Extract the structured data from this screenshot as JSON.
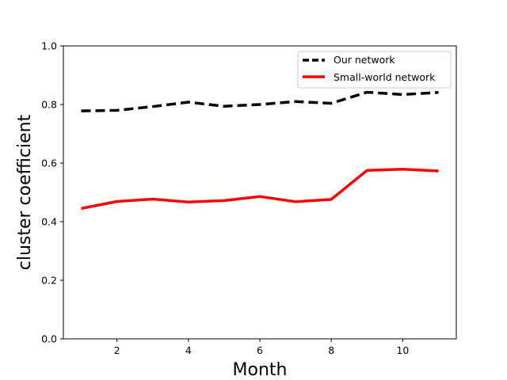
{
  "chart_data": {
    "type": "line",
    "xlabel": "Month",
    "ylabel": "cluster coefficient",
    "xlim": [
      0.5,
      11.5
    ],
    "ylim": [
      0.0,
      1.0
    ],
    "xticks": [
      2,
      4,
      6,
      8,
      10
    ],
    "yticks": [
      0.0,
      0.2,
      0.4,
      0.6,
      0.8,
      1.0
    ],
    "xtick_labels": [
      "2",
      "4",
      "6",
      "8",
      "10"
    ],
    "ytick_labels": [
      "0.0",
      "0.2",
      "0.4",
      "0.6",
      "0.8",
      "1.0"
    ],
    "x": [
      1,
      2,
      3,
      4,
      5,
      6,
      7,
      8,
      9,
      10,
      11
    ],
    "series": [
      {
        "name": "Our network",
        "values": [
          0.778,
          0.78,
          0.793,
          0.808,
          0.794,
          0.8,
          0.81,
          0.804,
          0.842,
          0.834,
          0.841
        ],
        "color": "#000000",
        "style": "dashed"
      },
      {
        "name": "Small-world network",
        "values": [
          0.445,
          0.469,
          0.477,
          0.467,
          0.472,
          0.486,
          0.468,
          0.476,
          0.575,
          0.579,
          0.573
        ],
        "color": "#ff0000",
        "style": "solid"
      }
    ],
    "legend": "top-right",
    "grid": false
  }
}
